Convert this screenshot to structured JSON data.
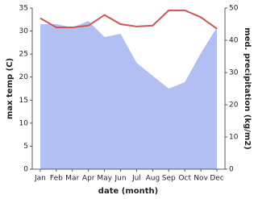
{
  "chart_data": {
    "type": "combo",
    "x_label": "date (month)",
    "y_label": "max temp (C)",
    "y2_label": "med. precipitation (kg/m2)",
    "categories": [
      "Jan",
      "Feb",
      "Mar",
      "Apr",
      "May",
      "Jun",
      "Jul",
      "Aug",
      "Sep",
      "Oct",
      "Nov",
      "Dec"
    ],
    "series": [
      {
        "name": "med. precipitation",
        "type": "area",
        "axis": "y2",
        "color": "#b1bff2",
        "values": [
          45,
          45,
          44,
          46,
          41,
          42,
          33,
          29,
          25,
          27,
          36,
          44
        ]
      },
      {
        "name": "max temp",
        "type": "line",
        "color": "#cd5656",
        "values": [
          32.8,
          30.8,
          30.8,
          31.2,
          33.5,
          31.5,
          31,
          31.2,
          34.5,
          34.5,
          33,
          30.5
        ]
      }
    ],
    "ylim": [
      0,
      35
    ],
    "yticks": [
      0,
      5,
      10,
      15,
      20,
      25,
      30,
      35
    ],
    "y2lim": [
      0,
      50
    ],
    "y2ticks": [
      0,
      10,
      20,
      30,
      40,
      50
    ]
  }
}
